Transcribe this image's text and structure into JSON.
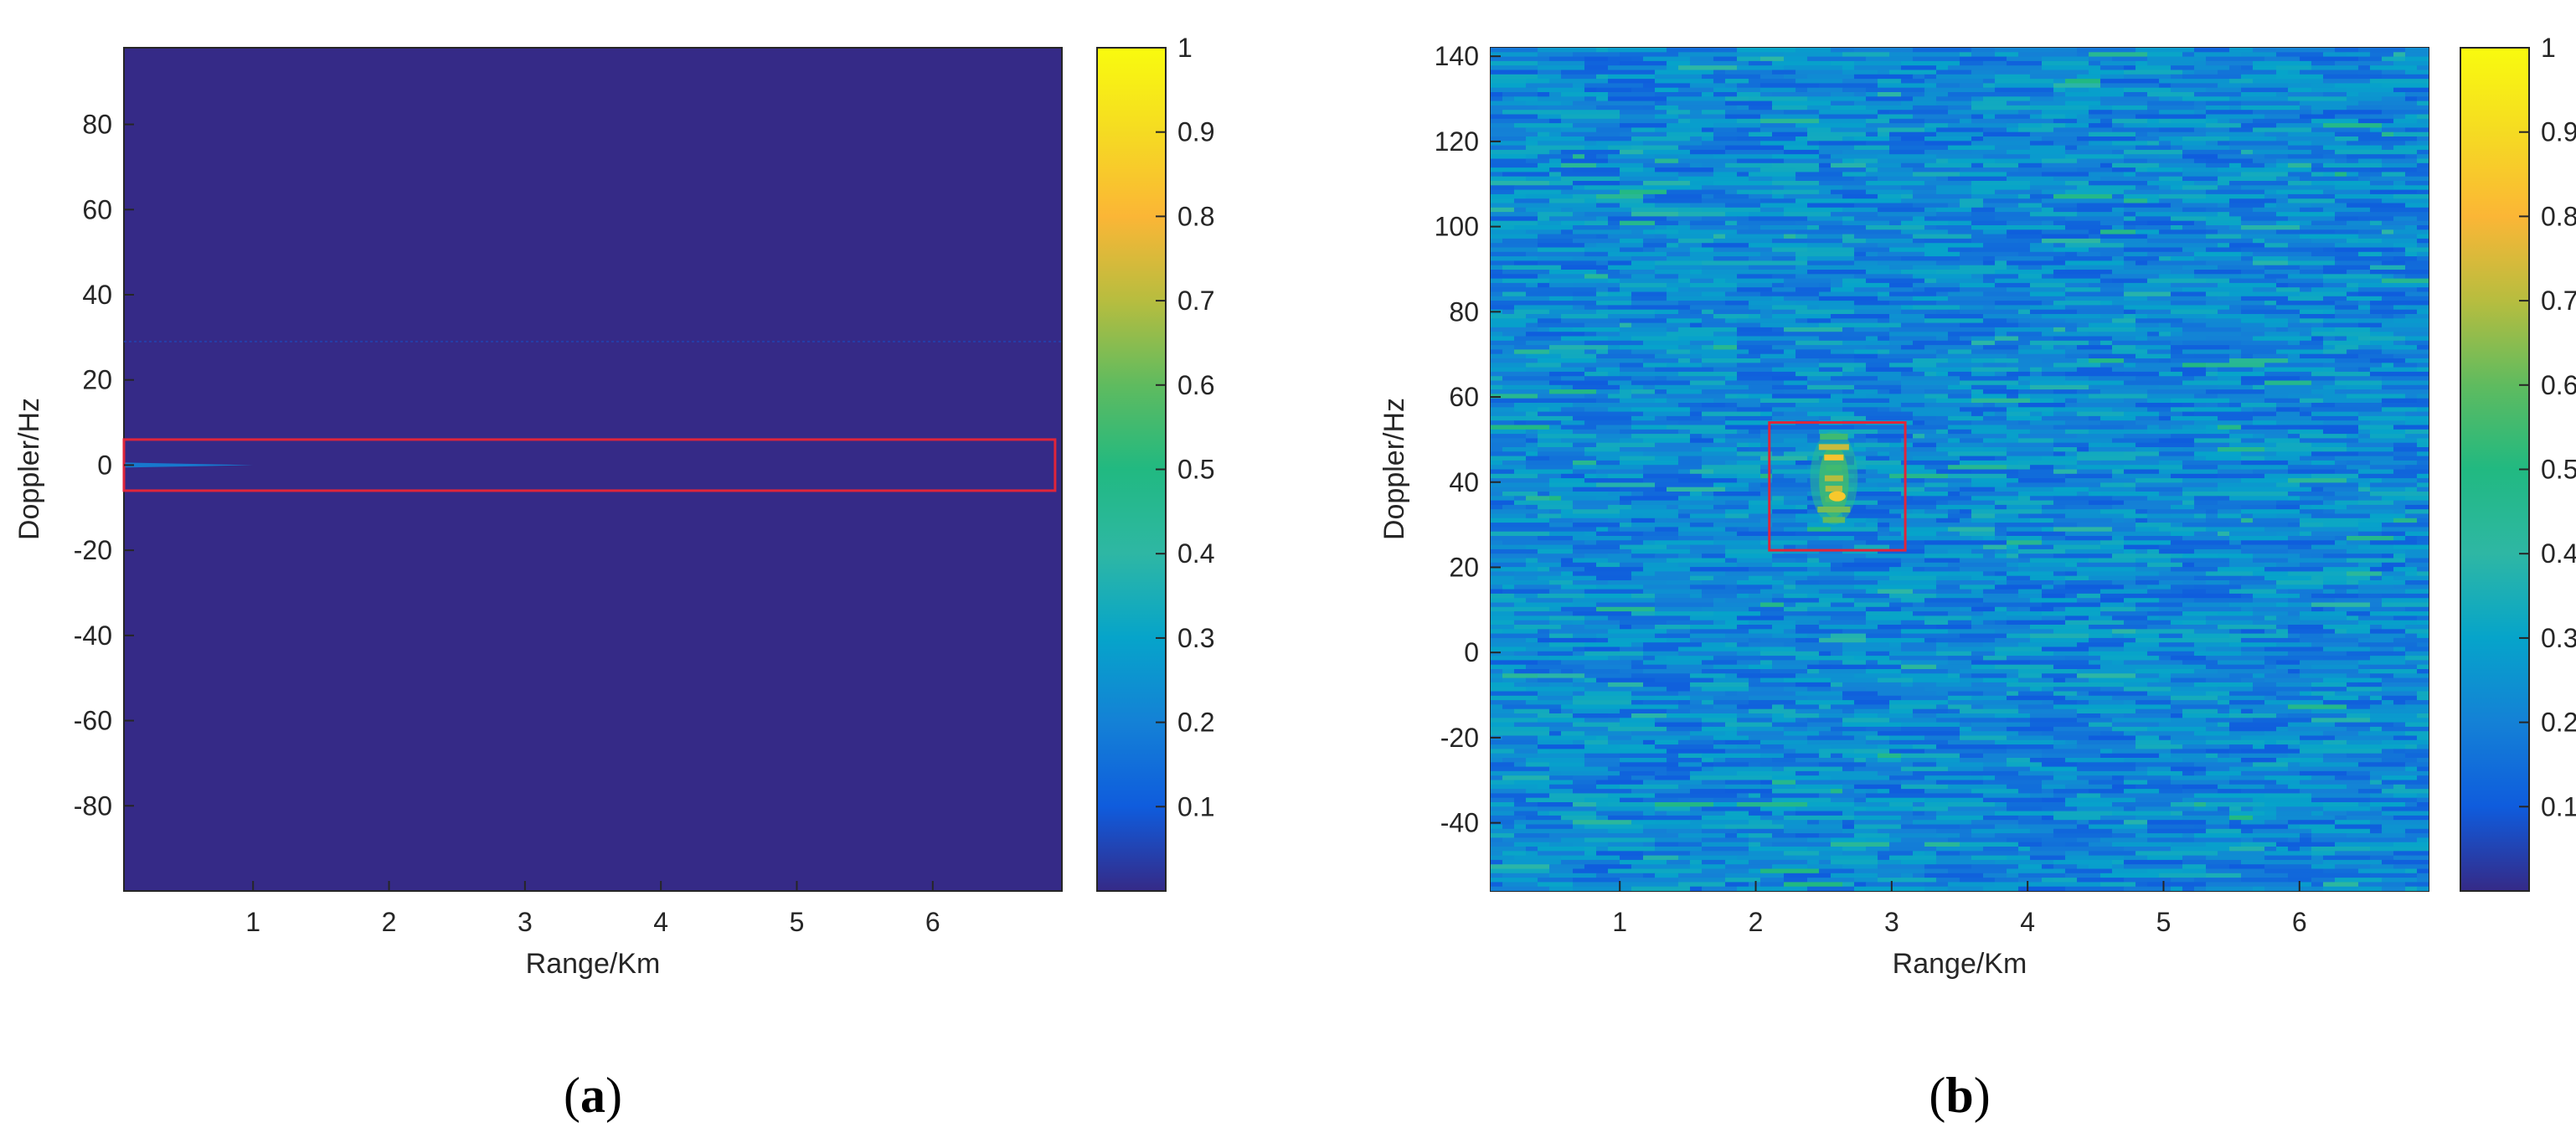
{
  "chart_data": [
    {
      "type": "heatmap",
      "panel_label": "(a)",
      "panel_label_letter": "a",
      "xlabel": "Range/Km",
      "ylabel": "Doppler/Hz",
      "xlim": [
        0.05,
        6.95
      ],
      "ylim": [
        -100,
        98
      ],
      "xticks": [
        1,
        2,
        3,
        4,
        5,
        6
      ],
      "yticks": [
        80,
        60,
        40,
        20,
        0,
        -20,
        -40,
        -60,
        -80
      ],
      "colorbar": {
        "ticks": [
          "0.1",
          "0.2",
          "0.3",
          "0.4",
          "0.5",
          "0.6",
          "0.7",
          "0.8",
          "0.9",
          "1"
        ],
        "min": 0,
        "max": 1
      },
      "background_value": 0.0,
      "features": [
        {
          "kind": "faint-line",
          "doppler": 29,
          "range_from": 0.05,
          "range_to": 6.95,
          "value": 0.05
        },
        {
          "kind": "streak",
          "doppler": 0,
          "range_from": 0.05,
          "range_to": 1.0,
          "value": 0.2
        }
      ],
      "highlight_box": {
        "range": [
          0.05,
          6.9
        ],
        "doppler": [
          -6,
          6
        ],
        "color": "#e0253a"
      }
    },
    {
      "type": "heatmap",
      "panel_label": "(b)",
      "panel_label_letter": "b",
      "xlabel": "Range/Km",
      "ylabel": "Doppler/Hz",
      "xlim": [
        0.05,
        6.95
      ],
      "ylim": [
        -56,
        142
      ],
      "xticks": [
        1,
        2,
        3,
        4,
        5,
        6
      ],
      "yticks": [
        140,
        120,
        100,
        80,
        60,
        40,
        20,
        0,
        -20,
        -40
      ],
      "colorbar": {
        "ticks": [
          "0.1",
          "0.2",
          "0.3",
          "0.4",
          "0.5",
          "0.6",
          "0.7",
          "0.8",
          "0.9",
          "1"
        ],
        "min": 0,
        "max": 1
      },
      "background_level": 0.22,
      "noise_amplitude": 0.12,
      "target": {
        "range": [
          2.4,
          2.75
        ],
        "doppler": [
          30,
          52
        ],
        "peak_value": 0.85
      },
      "highlight_box": {
        "range": [
          2.1,
          3.1
        ],
        "doppler": [
          24,
          54
        ],
        "color": "#e0253a"
      }
    }
  ],
  "colors": {
    "parula_low": "#352a87",
    "parula_high": "#f9fb0e",
    "box": "#e0253a",
    "axis": "#262626"
  }
}
